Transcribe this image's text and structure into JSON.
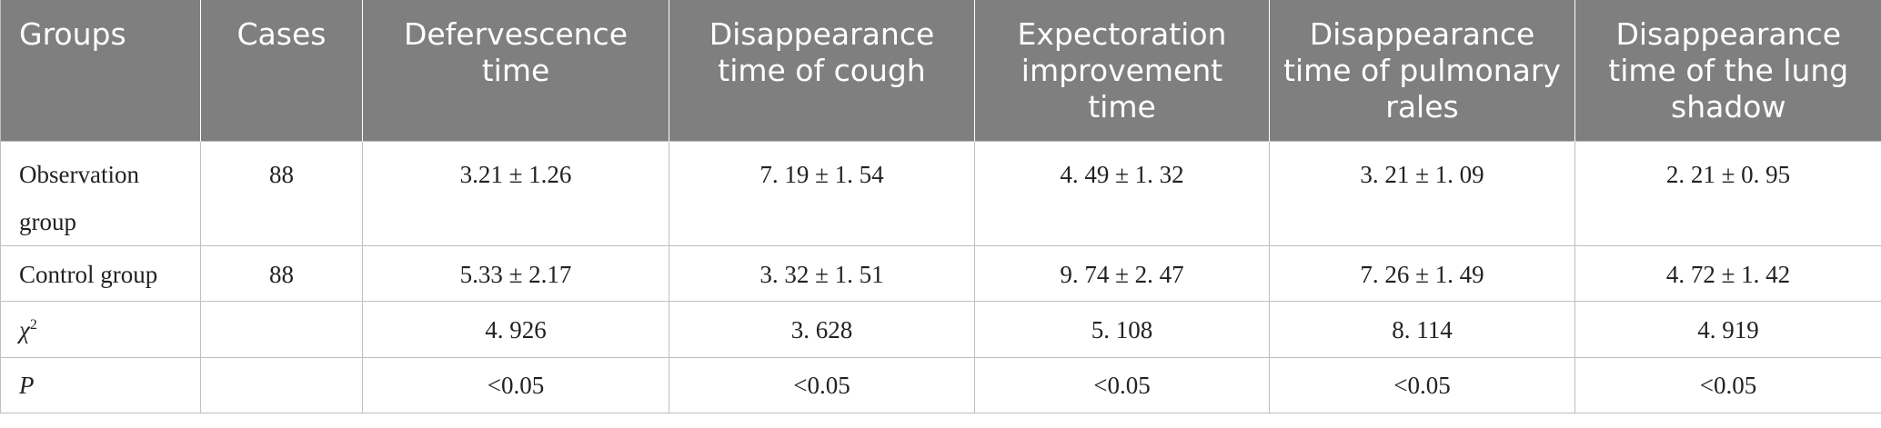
{
  "table": {
    "headers": [
      "Groups",
      "Cases",
      "Defervescence time",
      "Disappearance time of cough",
      "Expectoration improvement time",
      "Disappearance time of pulmonary rales",
      "Disappearance time of the lung shadow"
    ],
    "rows": [
      {
        "group": "Observation group",
        "cases": "88",
        "defervescence": "3.21 ± 1.26",
        "cough": "7. 19 ± 1. 54",
        "expectoration": "4. 49 ± 1. 32",
        "rales": "3. 21 ± 1. 09",
        "shadow": "2. 21 ± 0. 95"
      },
      {
        "group": "Control group",
        "cases": "88",
        "defervescence": "5.33 ± 2.17",
        "cough": "3. 32 ± 1. 51",
        "expectoration": "9. 74 ± 2. 47",
        "rales": "7. 26 ± 1. 49",
        "shadow": "4. 72 ± 1. 42"
      }
    ],
    "chi_row": {
      "symbol": "χ",
      "superscript": "2",
      "cases": "",
      "defervescence": "4. 926",
      "cough": "3. 628",
      "expectoration": "5. 108",
      "rales": "8. 114",
      "shadow": "4. 919"
    },
    "p_row": {
      "symbol": "P",
      "cases": "",
      "defervescence": "<0.05",
      "cough": "<0.05",
      "expectoration": "<0.05",
      "rales": "<0.05",
      "shadow": "<0.05"
    }
  },
  "colors": {
    "header_bg": "#7f7f7f",
    "header_text": "#ffffff",
    "border": "#bfbfbf",
    "body_text": "#222222"
  }
}
